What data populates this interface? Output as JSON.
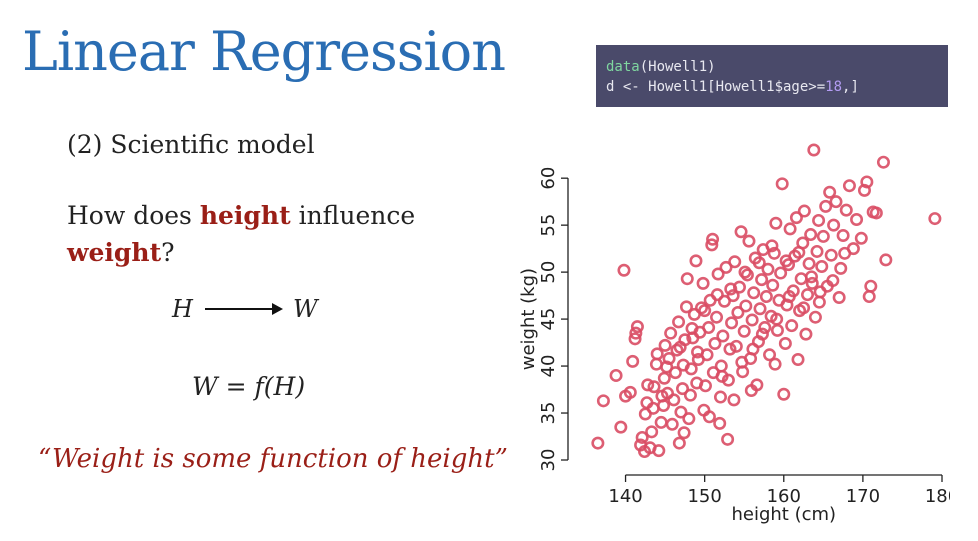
{
  "slide": {
    "title": "Linear Regression",
    "subtitle": "(2) Scientific model",
    "question_pre": "How does ",
    "question_hl1": "height",
    "question_mid": " influence ",
    "question_hl2": "weight",
    "question_post": "?",
    "dag_from": "H",
    "dag_to": "W",
    "formula": "W = f(H)",
    "quote": "“Weight is some function of height”"
  },
  "code": {
    "line1_fn": "data",
    "line1_rest": "(Howell1)",
    "line2_pre": "d <- Howell1[Howell1$age>=",
    "line2_num": "18",
    "line2_post": ",]"
  },
  "colors": {
    "title": "#2a6db3",
    "highlight": "#9a1f17",
    "code_bg": "#4a4a6a",
    "points": "#d94c64"
  },
  "chart_data": {
    "type": "scatter",
    "xlabel": "height (cm)",
    "ylabel": "weight (kg)",
    "xlim": [
      135,
      180
    ],
    "ylim": [
      30,
      63
    ],
    "xticks": [
      140,
      150,
      160,
      170,
      180
    ],
    "yticks": [
      30,
      35,
      40,
      45,
      50,
      55,
      60
    ],
    "marker": "open-circle",
    "points": [
      [
        136.5,
        31.8
      ],
      [
        137.2,
        36.3
      ],
      [
        138.8,
        39.0
      ],
      [
        139.4,
        33.5
      ],
      [
        139.8,
        50.2
      ],
      [
        140.0,
        36.8
      ],
      [
        140.6,
        37.2
      ],
      [
        140.9,
        40.5
      ],
      [
        141.2,
        42.9
      ],
      [
        141.5,
        44.2
      ],
      [
        141.3,
        43.5
      ],
      [
        141.9,
        31.6
      ],
      [
        142.1,
        32.4
      ],
      [
        142.5,
        34.9
      ],
      [
        142.7,
        36.1
      ],
      [
        142.8,
        38.0
      ],
      [
        143.1,
        31.3
      ],
      [
        143.3,
        33.0
      ],
      [
        143.5,
        35.5
      ],
      [
        143.6,
        37.8
      ],
      [
        143.9,
        40.2
      ],
      [
        144.0,
        41.3
      ],
      [
        144.2,
        31.0
      ],
      [
        144.5,
        34.0
      ],
      [
        144.8,
        35.8
      ],
      [
        144.9,
        38.7
      ],
      [
        145.0,
        42.2
      ],
      [
        145.3,
        37.1
      ],
      [
        145.5,
        40.8
      ],
      [
        145.7,
        43.5
      ],
      [
        145.9,
        33.8
      ],
      [
        146.1,
        36.4
      ],
      [
        146.3,
        39.3
      ],
      [
        146.5,
        41.7
      ],
      [
        146.7,
        44.7
      ],
      [
        146.8,
        31.8
      ],
      [
        147.0,
        35.1
      ],
      [
        147.2,
        37.6
      ],
      [
        147.3,
        40.1
      ],
      [
        147.5,
        42.8
      ],
      [
        147.7,
        46.3
      ],
      [
        147.8,
        49.3
      ],
      [
        148.0,
        34.4
      ],
      [
        148.2,
        36.9
      ],
      [
        148.3,
        39.7
      ],
      [
        148.5,
        43.0
      ],
      [
        148.7,
        45.5
      ],
      [
        148.9,
        51.2
      ],
      [
        149.0,
        38.2
      ],
      [
        149.2,
        40.7
      ],
      [
        149.4,
        43.6
      ],
      [
        149.6,
        46.2
      ],
      [
        149.8,
        48.8
      ],
      [
        149.9,
        35.3
      ],
      [
        150.1,
        37.9
      ],
      [
        150.3,
        41.2
      ],
      [
        150.5,
        44.1
      ],
      [
        150.7,
        47.0
      ],
      [
        150.9,
        52.9
      ],
      [
        151.0,
        53.5
      ],
      [
        151.1,
        39.3
      ],
      [
        151.3,
        42.4
      ],
      [
        151.5,
        45.2
      ],
      [
        151.7,
        49.8
      ],
      [
        151.9,
        33.9
      ],
      [
        152.0,
        36.7
      ],
      [
        152.1,
        40.0
      ],
      [
        152.3,
        43.2
      ],
      [
        152.5,
        46.9
      ],
      [
        152.7,
        50.5
      ],
      [
        152.9,
        32.2
      ],
      [
        153.0,
        38.5
      ],
      [
        153.2,
        41.8
      ],
      [
        153.4,
        44.6
      ],
      [
        153.6,
        47.5
      ],
      [
        153.8,
        51.1
      ],
      [
        154.0,
        42.1
      ],
      [
        154.2,
        45.7
      ],
      [
        154.4,
        48.4
      ],
      [
        154.6,
        54.3
      ],
      [
        154.8,
        39.4
      ],
      [
        155.0,
        43.7
      ],
      [
        155.2,
        46.4
      ],
      [
        155.4,
        49.7
      ],
      [
        155.6,
        53.3
      ],
      [
        155.8,
        40.8
      ],
      [
        156.0,
        44.9
      ],
      [
        156.2,
        47.8
      ],
      [
        156.4,
        51.5
      ],
      [
        156.6,
        38.0
      ],
      [
        156.8,
        42.6
      ],
      [
        157.0,
        46.1
      ],
      [
        157.2,
        49.2
      ],
      [
        157.4,
        52.4
      ],
      [
        157.6,
        44.1
      ],
      [
        157.8,
        47.4
      ],
      [
        158.0,
        50.3
      ],
      [
        158.2,
        41.2
      ],
      [
        158.4,
        45.3
      ],
      [
        158.6,
        48.6
      ],
      [
        158.8,
        52.0
      ],
      [
        159.0,
        55.2
      ],
      [
        159.2,
        43.8
      ],
      [
        159.4,
        47.0
      ],
      [
        159.6,
        49.9
      ],
      [
        159.8,
        59.4
      ],
      [
        160.0,
        37.0
      ],
      [
        160.2,
        42.4
      ],
      [
        160.4,
        46.5
      ],
      [
        160.6,
        50.8
      ],
      [
        160.8,
        54.6
      ],
      [
        161.0,
        44.3
      ],
      [
        161.2,
        48.0
      ],
      [
        161.4,
        51.7
      ],
      [
        161.6,
        55.8
      ],
      [
        161.8,
        40.7
      ],
      [
        162.0,
        45.9
      ],
      [
        162.2,
        49.3
      ],
      [
        162.4,
        53.1
      ],
      [
        162.6,
        56.5
      ],
      [
        162.8,
        43.4
      ],
      [
        163.0,
        47.6
      ],
      [
        163.2,
        50.9
      ],
      [
        163.4,
        54.0
      ],
      [
        163.6,
        48.8
      ],
      [
        163.8,
        63.0
      ],
      [
        164.0,
        45.2
      ],
      [
        164.2,
        52.2
      ],
      [
        164.4,
        55.5
      ],
      [
        164.6,
        47.9
      ],
      [
        164.8,
        50.6
      ],
      [
        165.0,
        53.8
      ],
      [
        165.3,
        57.0
      ],
      [
        165.5,
        48.5
      ],
      [
        165.8,
        58.5
      ],
      [
        166.0,
        51.8
      ],
      [
        166.3,
        55.0
      ],
      [
        166.6,
        57.5
      ],
      [
        167.0,
        47.3
      ],
      [
        167.2,
        50.4
      ],
      [
        167.5,
        53.9
      ],
      [
        167.9,
        56.6
      ],
      [
        168.3,
        59.2
      ],
      [
        168.8,
        52.5
      ],
      [
        169.2,
        55.6
      ],
      [
        169.8,
        53.6
      ],
      [
        170.2,
        58.7
      ],
      [
        170.5,
        59.6
      ],
      [
        170.8,
        47.4
      ],
      [
        171.0,
        48.5
      ],
      [
        171.3,
        56.4
      ],
      [
        171.7,
        56.3
      ],
      [
        172.6,
        61.7
      ],
      [
        172.9,
        51.3
      ],
      [
        179.1,
        55.7
      ],
      [
        148.4,
        44.0
      ],
      [
        150.0,
        45.9
      ],
      [
        151.6,
        47.6
      ],
      [
        153.3,
        48.2
      ],
      [
        155.1,
        50.0
      ],
      [
        156.9,
        51.0
      ],
      [
        158.5,
        52.8
      ],
      [
        160.3,
        51.2
      ],
      [
        161.9,
        52.1
      ],
      [
        163.5,
        49.5
      ],
      [
        145.2,
        39.9
      ],
      [
        146.9,
        42.0
      ],
      [
        149.1,
        41.5
      ],
      [
        152.2,
        38.9
      ],
      [
        154.7,
        40.4
      ],
      [
        156.1,
        41.8
      ],
      [
        157.3,
        43.4
      ],
      [
        159.1,
        45.0
      ],
      [
        160.7,
        47.4
      ],
      [
        162.5,
        46.2
      ],
      [
        164.5,
        46.8
      ],
      [
        166.2,
        49.1
      ],
      [
        167.7,
        52.0
      ],
      [
        153.7,
        36.4
      ],
      [
        150.6,
        34.6
      ],
      [
        147.4,
        32.9
      ],
      [
        144.6,
        36.8
      ],
      [
        142.4,
        30.9
      ],
      [
        155.9,
        37.4
      ],
      [
        158.9,
        40.2
      ]
    ]
  }
}
